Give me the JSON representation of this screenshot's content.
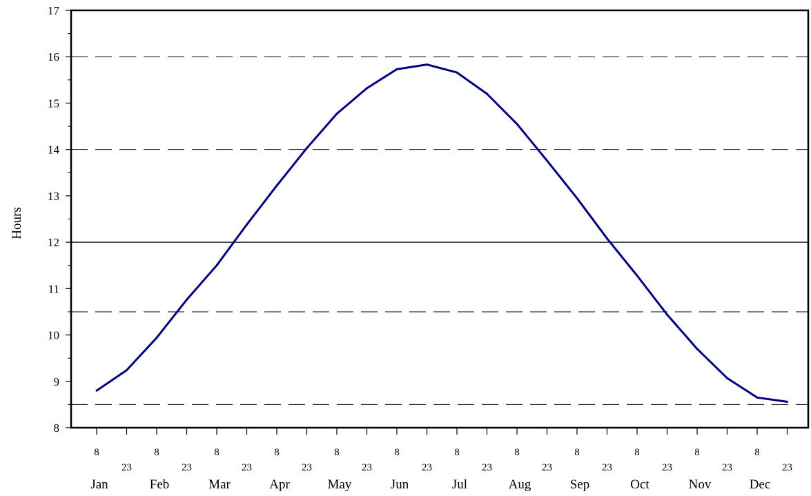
{
  "chart_data": {
    "type": "line",
    "title": "",
    "xlabel": "",
    "ylabel": "Hours",
    "ylim": [
      8,
      17
    ],
    "yticks": [
      "8",
      "9",
      "10",
      "11",
      "12",
      "13",
      "14",
      "15",
      "16",
      "17"
    ],
    "day_labels": [
      "8",
      "23",
      "8",
      "23",
      "8",
      "23",
      "8",
      "23",
      "8",
      "23",
      "8",
      "23",
      "8",
      "23",
      "8",
      "23",
      "8",
      "23",
      "8",
      "23",
      "8",
      "23",
      "8",
      "23"
    ],
    "months": [
      "Jan",
      "Feb",
      "Mar",
      "Apr",
      "May",
      "Jun",
      "Jul",
      "Aug",
      "Sep",
      "Oct",
      "Nov",
      "Dec"
    ],
    "reference_lines": [
      {
        "value": 8.5,
        "style": "dashed"
      },
      {
        "value": 10.5,
        "style": "dashed"
      },
      {
        "value": 12,
        "style": "solid"
      },
      {
        "value": 14,
        "style": "dashed"
      },
      {
        "value": 16,
        "style": "dashed"
      }
    ],
    "series": [
      {
        "color": "#000080",
        "x": [
          "Jan 8",
          "Jan 23",
          "Feb 8",
          "Feb 23",
          "Mar 8",
          "Mar 23",
          "Apr 8",
          "Apr 23",
          "May 8",
          "May 23",
          "Jun 8",
          "Jun 23",
          "Jul 8",
          "Jul 23",
          "Aug 8",
          "Aug 23",
          "Sep 8",
          "Sep 23",
          "Oct 8",
          "Oct 23",
          "Nov 8",
          "Nov 23",
          "Dec 8",
          "Dec 23"
        ],
        "values": [
          8.8,
          9.24,
          9.94,
          10.76,
          11.5,
          12.38,
          13.22,
          14.03,
          14.77,
          15.32,
          15.73,
          15.83,
          15.66,
          15.2,
          14.55,
          13.76,
          12.95,
          12.08,
          11.28,
          10.44,
          9.7,
          9.07,
          8.65,
          8.56
        ]
      }
    ]
  }
}
